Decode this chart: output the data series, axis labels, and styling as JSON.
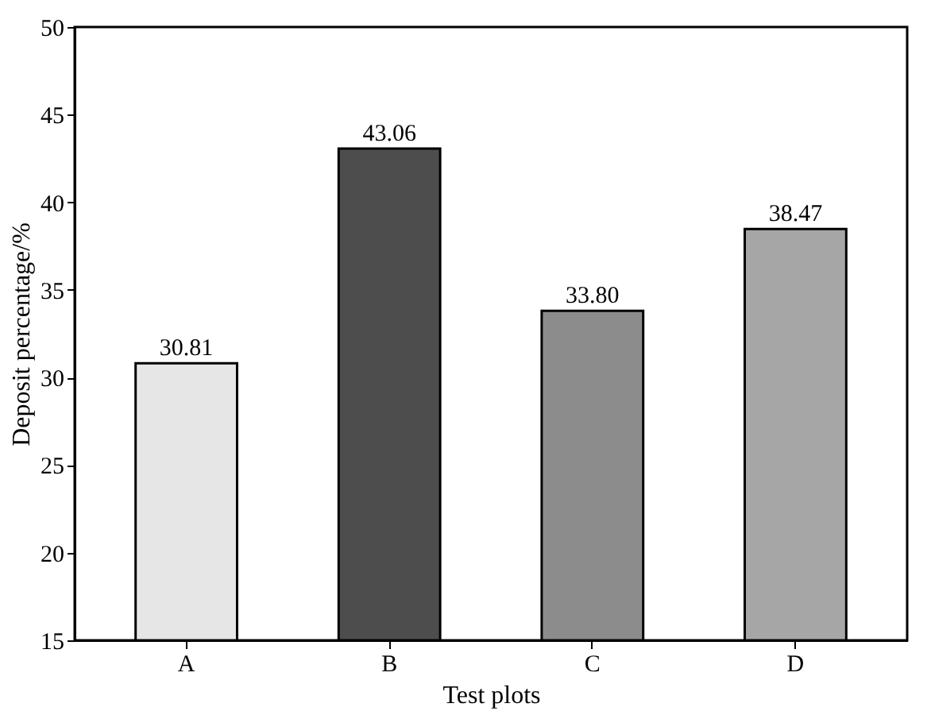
{
  "chart_data": {
    "type": "bar",
    "xlabel": "Test plots",
    "ylabel": "Deposit percentage/%",
    "categories": [
      "A",
      "B",
      "C",
      "D"
    ],
    "values": [
      30.81,
      43.06,
      33.8,
      38.47
    ],
    "colors": [
      "#e6e6e6",
      "#4d4d4d",
      "#8c8c8c",
      "#a6a6a6"
    ],
    "value_labels": [
      "30.81",
      "43.06",
      "33.80",
      "38.47"
    ],
    "ylim": [
      15,
      50
    ],
    "yticks": [
      15,
      20,
      25,
      30,
      35,
      40,
      45,
      50
    ],
    "grid": false
  }
}
